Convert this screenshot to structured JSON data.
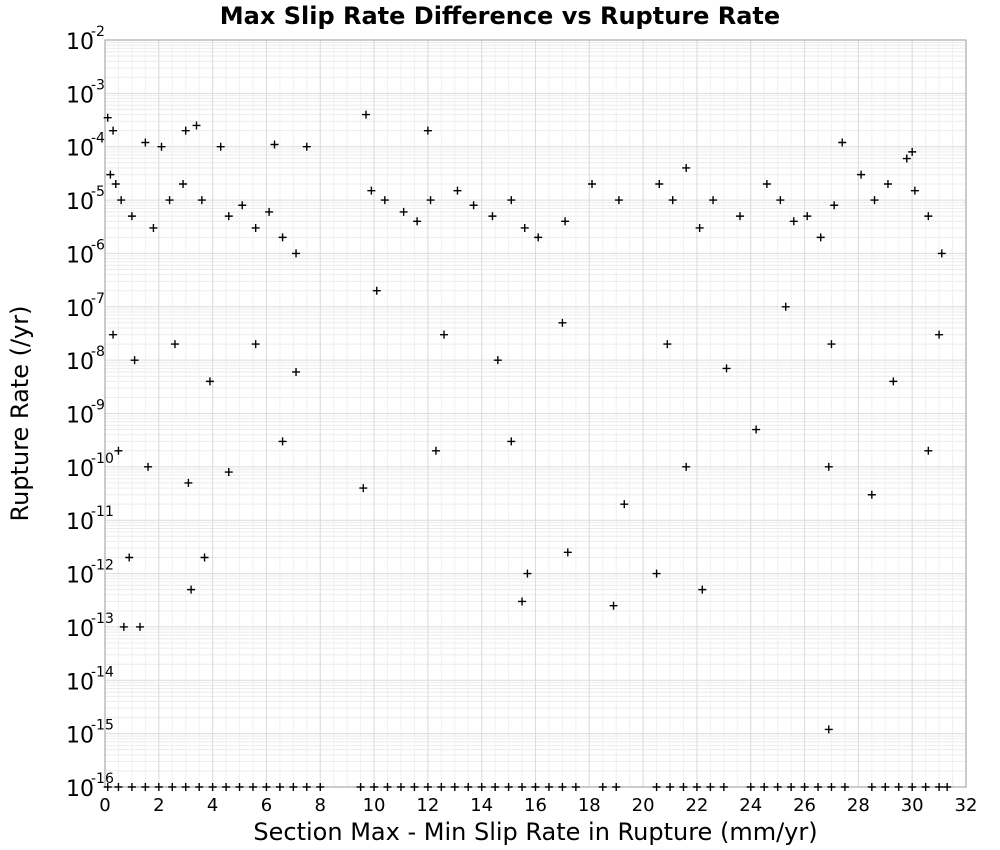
{
  "chart_data": {
    "type": "scatter",
    "title": "Max Slip Rate Difference vs Rupture Rate",
    "xlabel": "Section Max - Min Slip Rate in Rupture (mm/yr)",
    "ylabel": "Rupture Rate (/yr)",
    "xlim": [
      0,
      32
    ],
    "ylim": [
      1e-16,
      0.01
    ],
    "yscale": "log",
    "grid": true,
    "marker": "+",
    "marker_color": "#000000",
    "x_ticks": [
      "0",
      "2",
      "4",
      "6",
      "8",
      "10",
      "12",
      "14",
      "16",
      "18",
      "20",
      "22",
      "24",
      "26",
      "28",
      "30",
      "32"
    ],
    "y_ticks": [
      {
        "base": "10",
        "exp": "-16"
      },
      {
        "base": "10",
        "exp": "-15"
      },
      {
        "base": "10",
        "exp": "-14"
      },
      {
        "base": "10",
        "exp": "-13"
      },
      {
        "base": "10",
        "exp": "-12"
      },
      {
        "base": "10",
        "exp": "-11"
      },
      {
        "base": "10",
        "exp": "-10"
      },
      {
        "base": "10",
        "exp": "-9"
      },
      {
        "base": "10",
        "exp": "-8"
      },
      {
        "base": "10",
        "exp": "-7"
      },
      {
        "base": "10",
        "exp": "-6"
      },
      {
        "base": "10",
        "exp": "-5"
      },
      {
        "base": "10",
        "exp": "-4"
      },
      {
        "base": "10",
        "exp": "-3"
      },
      {
        "base": "10",
        "exp": "-2"
      }
    ],
    "series": [
      {
        "x": [
          9.7,
          12.0,
          3.0,
          3.4,
          0.1,
          0.3,
          1.5,
          2.1,
          4.3,
          7.5,
          6.3,
          30.0,
          27.4,
          29.8,
          15.7,
          15.5,
          18.9,
          26.9,
          1.3,
          0.7,
          0.9,
          3.2,
          3.7,
          17.2,
          22.2,
          20.5,
          0.2,
          0.4,
          0.6,
          1.0,
          1.8,
          2.4,
          2.9,
          3.6,
          4.6,
          5.1,
          5.6,
          6.1,
          6.6,
          7.1,
          9.9,
          10.4,
          11.1,
          11.6,
          12.1,
          13.1,
          13.7,
          14.4,
          15.1,
          15.6,
          16.1,
          17.1,
          18.1,
          19.1,
          20.6,
          21.1,
          21.6,
          22.1,
          22.6,
          23.6,
          24.6,
          25.1,
          25.6,
          26.1,
          26.6,
          27.1,
          28.1,
          28.6,
          29.1,
          30.1,
          30.6,
          31.1,
          0.3,
          1.1,
          2.6,
          3.9,
          5.6,
          7.1,
          10.1,
          12.6,
          14.6,
          17.0,
          20.9,
          23.1,
          25.3,
          27.0,
          29.3,
          31.0,
          0.5,
          1.6,
          3.1,
          4.6,
          6.6,
          9.6,
          12.3,
          15.1,
          19.3,
          21.6,
          24.2,
          26.9,
          28.5,
          30.6
        ],
        "y": [
          0.0004,
          0.0002,
          0.0002,
          0.00025,
          0.00035,
          0.0002,
          0.00012,
          0.0001,
          0.0001,
          0.0001,
          0.00011,
          8e-05,
          0.00012,
          6e-05,
          1e-12,
          3e-13,
          2.5e-13,
          1.2e-15,
          1e-13,
          1e-13,
          2e-12,
          5e-13,
          2e-12,
          2.5e-12,
          5e-13,
          1e-12,
          3e-05,
          2e-05,
          1e-05,
          5e-06,
          3e-06,
          1e-05,
          2e-05,
          1e-05,
          5e-06,
          8e-06,
          3e-06,
          6e-06,
          2e-06,
          1e-06,
          1.5e-05,
          1e-05,
          6e-06,
          4e-06,
          1e-05,
          1.5e-05,
          8e-06,
          5e-06,
          1e-05,
          3e-06,
          2e-06,
          4e-06,
          2e-05,
          1e-05,
          2e-05,
          1e-05,
          4e-05,
          3e-06,
          1e-05,
          5e-06,
          2e-05,
          1e-05,
          4e-06,
          5e-06,
          2e-06,
          8e-06,
          3e-05,
          1e-05,
          2e-05,
          1.5e-05,
          5e-06,
          1e-06,
          3e-08,
          1e-08,
          2e-08,
          4e-09,
          2e-08,
          6e-09,
          2e-07,
          3e-08,
          1e-08,
          5e-08,
          2e-08,
          7e-09,
          1e-07,
          2e-08,
          4e-09,
          3e-08,
          2e-10,
          1e-10,
          5e-11,
          8e-11,
          3e-10,
          4e-11,
          2e-10,
          3e-10,
          2e-11,
          1e-10,
          5e-10,
          1e-10,
          3e-11,
          2e-10
        ],
        "zero_floor_x": [
          0.1,
          0.5,
          1.0,
          1.5,
          2.0,
          2.5,
          3.0,
          3.5,
          4.0,
          4.5,
          5.0,
          5.5,
          6.0,
          6.5,
          7.0,
          7.5,
          8.0,
          9.5,
          10.0,
          10.5,
          11.0,
          11.5,
          12.0,
          12.5,
          13.0,
          13.5,
          14.0,
          14.5,
          15.0,
          15.5,
          16.0,
          16.5,
          17.0,
          17.5,
          18.5,
          19.0,
          20.5,
          21.0,
          21.5,
          22.0,
          22.5,
          23.0,
          24.0,
          24.5,
          25.0,
          25.5,
          26.0,
          26.5,
          27.0,
          27.5,
          28.5,
          29.0,
          29.5,
          30.0,
          30.5,
          31.0,
          31.3
        ],
        "zero_floor_y": 1e-16
      }
    ]
  }
}
